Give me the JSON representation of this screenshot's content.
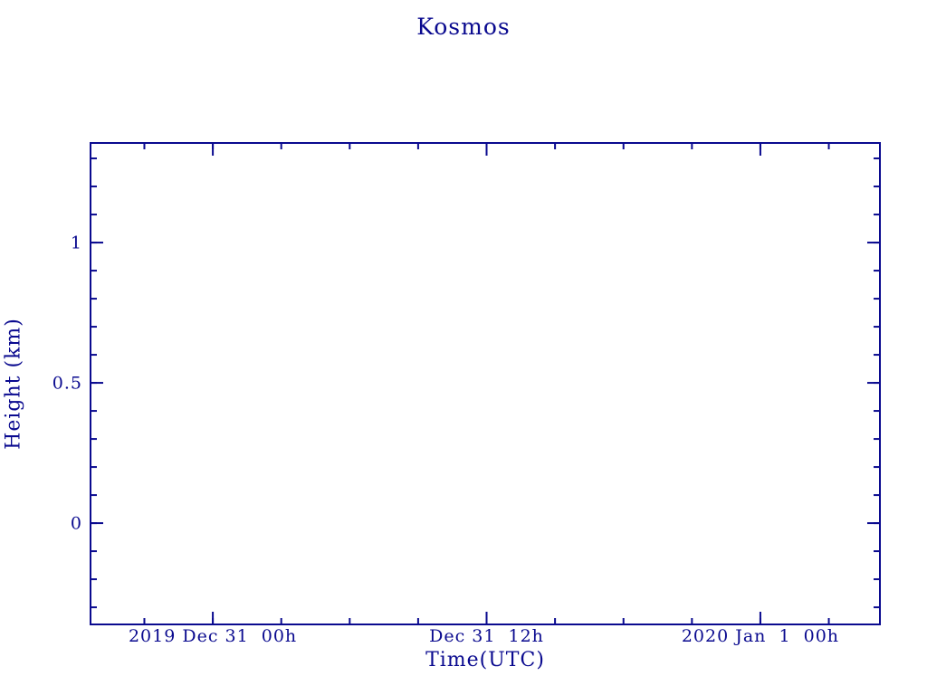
{
  "chart_data": {
    "type": "line",
    "title": "Kosmos",
    "xlabel": "Time(UTC)",
    "ylabel": "Height (km)",
    "axis_color": "#0a0a8f",
    "background_color": "#ffffff",
    "grid": false,
    "legend": false,
    "x_axis": {
      "unit_hours_from": "2019 Dec 31 00h UTC",
      "range": [
        -5.36,
        29.24
      ],
      "minor_tick_interval": 3,
      "major_ticks": [
        {
          "value": 0,
          "label": "2019 Dec 31  00h"
        },
        {
          "value": 12,
          "label": "Dec 31  12h"
        },
        {
          "value": 24,
          "label": "2020 Jan  1  00h"
        }
      ]
    },
    "y_axis": {
      "range": [
        -0.361,
        1.355
      ],
      "minor_tick_interval": 0.1,
      "major_ticks": [
        {
          "value": 0,
          "label": "0"
        },
        {
          "value": 0.5,
          "label": "0.5"
        },
        {
          "value": 1,
          "label": "1"
        }
      ]
    },
    "series": []
  }
}
